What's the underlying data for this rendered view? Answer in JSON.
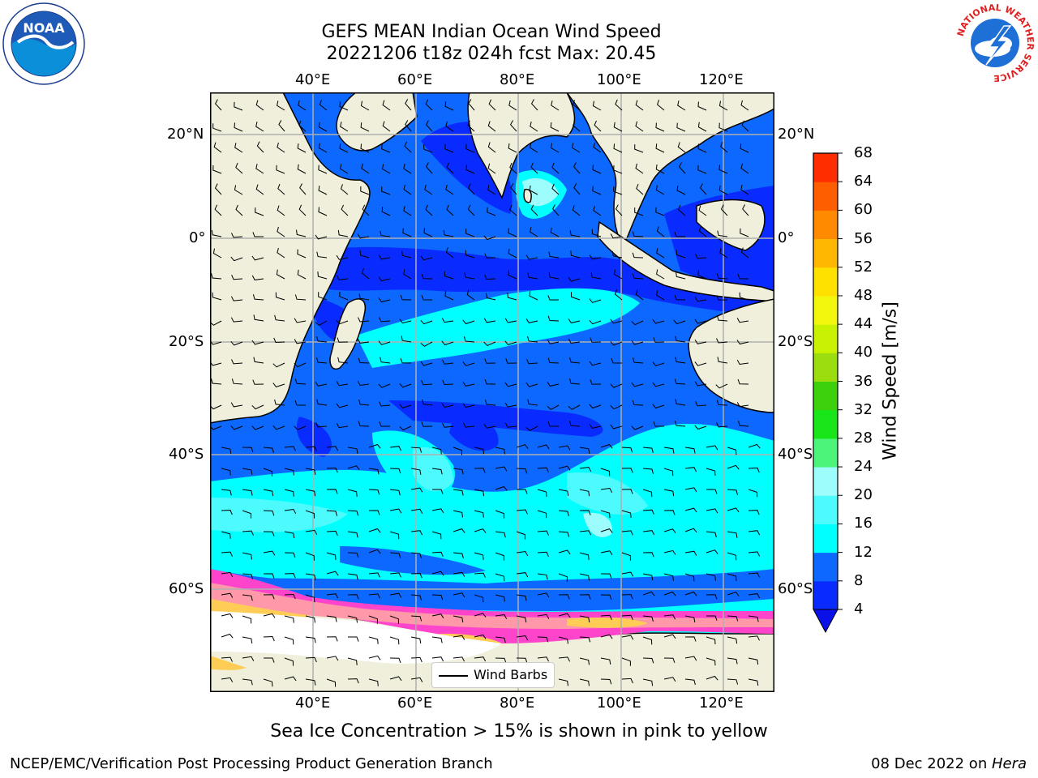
{
  "header": {
    "title_line1": "GEFS MEAN Indian Ocean Wind Speed",
    "title_line2": "20221206 t18z 024h fcst   Max: 20.45"
  },
  "map": {
    "lon_ticks": [
      "40°E",
      "60°E",
      "80°E",
      "100°E",
      "120°E"
    ],
    "lat_ticks": [
      "20°N",
      "0°",
      "20°S",
      "40°S",
      "60°S"
    ],
    "lon_range": [
      20,
      130
    ],
    "lat_range": [
      -74,
      28
    ],
    "land_color": "#efefdc",
    "sea_ice_colors": [
      "#ff44cc",
      "#ff99aa",
      "#ffcc55"
    ]
  },
  "legend": {
    "wind_barbs_label": "Wind Barbs"
  },
  "colorbar": {
    "title": "Wind Speed [m/s]",
    "ticks": [
      "4",
      "8",
      "12",
      "16",
      "20",
      "24",
      "28",
      "32",
      "36",
      "40",
      "44",
      "48",
      "52",
      "56",
      "60",
      "64",
      "68"
    ],
    "colors": [
      "#0a2bff",
      "#0d68ff",
      "#00ffff",
      "#4dfbff",
      "#9dfdfd",
      "#4cf57a",
      "#19e619",
      "#3dd10d",
      "#9bdd0e",
      "#c9f203",
      "#f3f70d",
      "#ffe100",
      "#ffb700",
      "#ff8a00",
      "#ff5e00",
      "#ff2d00",
      "#ff0000"
    ],
    "extend_color": "#0a10e8"
  },
  "caption": "Sea Ice Concentration > 15% is shown in pink to yellow",
  "footer": {
    "left": "NCEP/EMC/Verification Post Processing Product Generation Branch",
    "right_prefix": "08 Dec 2022 on ",
    "right_host": "Hera"
  },
  "logos": {
    "noaa": "NOAA",
    "nws": "NATIONAL WEATHER SERVICE"
  }
}
